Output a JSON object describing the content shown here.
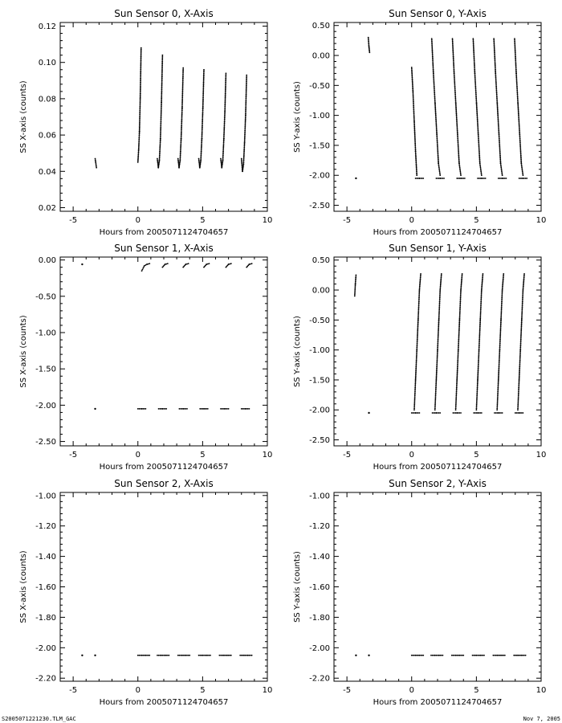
{
  "footer": {
    "left_label": "S2005071221230.TLM_GAC",
    "right_label": "Nov  7, 2005"
  },
  "chart_data": [
    {
      "type": "scatter",
      "title": "Sun Sensor 0, X-Axis",
      "xlabel": "Hours from 2005071124704657",
      "ylabel": "SS X-axis (counts)",
      "xlim": [
        -6,
        10
      ],
      "ylim": [
        0.018,
        0.122
      ],
      "xticks": [
        -5,
        0,
        5,
        10
      ],
      "yticks": [
        0.02,
        0.04,
        0.06,
        0.08,
        0.1,
        0.12
      ],
      "yformat": 2,
      "segments": [
        {
          "x": [
            -3.3,
            -3.2
          ],
          "y": [
            0.047,
            0.042
          ]
        },
        {
          "x": [
            0.0,
            0.06,
            0.12,
            0.18,
            0.25
          ],
          "y": [
            0.045,
            0.052,
            0.062,
            0.08,
            0.108
          ]
        },
        {
          "x": [
            1.5,
            1.58,
            1.66,
            1.74,
            1.82,
            1.9
          ],
          "y": [
            0.047,
            0.042,
            0.046,
            0.058,
            0.078,
            0.104
          ]
        },
        {
          "x": [
            3.1,
            3.18,
            3.26,
            3.34,
            3.42,
            3.5
          ],
          "y": [
            0.047,
            0.042,
            0.046,
            0.058,
            0.075,
            0.097
          ]
        },
        {
          "x": [
            4.7,
            4.78,
            4.86,
            4.94,
            5.02,
            5.1
          ],
          "y": [
            0.047,
            0.042,
            0.046,
            0.058,
            0.075,
            0.096
          ]
        },
        {
          "x": [
            6.4,
            6.48,
            6.56,
            6.64,
            6.72,
            6.8
          ],
          "y": [
            0.047,
            0.042,
            0.046,
            0.058,
            0.073,
            0.094
          ]
        },
        {
          "x": [
            8.0,
            8.08,
            8.16,
            8.24,
            8.32,
            8.4
          ],
          "y": [
            0.047,
            0.04,
            0.044,
            0.056,
            0.071,
            0.093
          ]
        }
      ]
    },
    {
      "type": "scatter",
      "title": "Sun Sensor 0, Y-Axis",
      "xlabel": "Hours from 2005071124704657",
      "ylabel": "SS Y-axis (counts)",
      "xlim": [
        -6,
        10
      ],
      "ylim": [
        -2.6,
        0.55
      ],
      "xticks": [
        -5,
        0,
        5,
        10
      ],
      "yticks": [
        -2.5,
        -2.0,
        -1.5,
        -1.0,
        -0.5,
        0.0,
        0.5
      ],
      "yformat": 2,
      "segments": [
        {
          "x": [
            -4.3
          ],
          "y": [
            -2.05
          ]
        },
        {
          "x": [
            -3.35,
            -3.3,
            -3.25
          ],
          "y": [
            0.3,
            0.15,
            0.05
          ]
        },
        {
          "x": [
            0.0,
            0.1,
            0.2,
            0.3,
            0.4
          ],
          "y": [
            -0.2,
            -0.6,
            -1.1,
            -1.6,
            -2.0
          ]
        },
        {
          "x": [
            1.55,
            1.68,
            1.81,
            1.94,
            2.07,
            2.2
          ],
          "y": [
            0.28,
            -0.3,
            -0.8,
            -1.3,
            -1.8,
            -2.0
          ]
        },
        {
          "x": [
            3.15,
            3.28,
            3.41,
            3.54,
            3.67,
            3.8
          ],
          "y": [
            0.28,
            -0.3,
            -0.8,
            -1.3,
            -1.8,
            -2.0
          ]
        },
        {
          "x": [
            4.75,
            4.88,
            5.01,
            5.14,
            5.27,
            5.4
          ],
          "y": [
            0.28,
            -0.3,
            -0.8,
            -1.3,
            -1.8,
            -2.0
          ]
        },
        {
          "x": [
            6.35,
            6.48,
            6.61,
            6.74,
            6.87,
            7.0
          ],
          "y": [
            0.28,
            -0.3,
            -0.8,
            -1.3,
            -1.8,
            -2.0
          ]
        },
        {
          "x": [
            7.95,
            8.08,
            8.21,
            8.34,
            8.47,
            8.6
          ],
          "y": [
            0.28,
            -0.3,
            -0.8,
            -1.3,
            -1.8,
            -2.0
          ]
        },
        {
          "x": [
            0.3,
            0.6,
            0.9
          ],
          "y": [
            -2.05,
            -2.05,
            -2.05
          ]
        },
        {
          "x": [
            1.9,
            2.2,
            2.5
          ],
          "y": [
            -2.05,
            -2.05,
            -2.05
          ]
        },
        {
          "x": [
            3.5,
            3.8,
            4.1
          ],
          "y": [
            -2.05,
            -2.05,
            -2.05
          ]
        },
        {
          "x": [
            5.1,
            5.4,
            5.7
          ],
          "y": [
            -2.05,
            -2.05,
            -2.05
          ]
        },
        {
          "x": [
            6.7,
            7.0,
            7.3
          ],
          "y": [
            -2.05,
            -2.05,
            -2.05
          ]
        },
        {
          "x": [
            8.3,
            8.6,
            8.9
          ],
          "y": [
            -2.05,
            -2.05,
            -2.05
          ]
        }
      ]
    },
    {
      "type": "scatter",
      "title": "Sun Sensor 1, X-Axis",
      "xlabel": "Hours from 2005071124704657",
      "ylabel": "SS X-axis (counts)",
      "xlim": [
        -6,
        10
      ],
      "ylim": [
        -2.56,
        0.04
      ],
      "xticks": [
        -5,
        0,
        5,
        10
      ],
      "yticks": [
        -2.5,
        -2.0,
        -1.5,
        -1.0,
        -0.5,
        0.0
      ],
      "yformat": 2,
      "segments": [
        {
          "x": [
            -4.3
          ],
          "y": [
            -0.06
          ]
        },
        {
          "x": [
            -3.3
          ],
          "y": [
            -2.05
          ]
        },
        {
          "x": [
            0.3,
            0.5,
            0.7,
            0.9
          ],
          "y": [
            -0.15,
            -0.08,
            -0.06,
            -0.05
          ]
        },
        {
          "x": [
            1.9,
            2.1,
            2.3
          ],
          "y": [
            -0.1,
            -0.06,
            -0.05
          ]
        },
        {
          "x": [
            3.5,
            3.7,
            3.9
          ],
          "y": [
            -0.1,
            -0.06,
            -0.05
          ]
        },
        {
          "x": [
            5.1,
            5.3,
            5.5
          ],
          "y": [
            -0.1,
            -0.06,
            -0.05
          ]
        },
        {
          "x": [
            6.8,
            7.0,
            7.2
          ],
          "y": [
            -0.1,
            -0.06,
            -0.05
          ]
        },
        {
          "x": [
            8.4,
            8.6,
            8.8
          ],
          "y": [
            -0.1,
            -0.06,
            -0.05
          ]
        },
        {
          "x": [
            0.0,
            0.3,
            0.6
          ],
          "y": [
            -2.05,
            -2.05,
            -2.05
          ]
        },
        {
          "x": [
            1.6,
            1.9,
            2.2
          ],
          "y": [
            -2.05,
            -2.05,
            -2.05
          ]
        },
        {
          "x": [
            3.2,
            3.5,
            3.8
          ],
          "y": [
            -2.05,
            -2.05,
            -2.05
          ]
        },
        {
          "x": [
            4.8,
            5.1,
            5.4
          ],
          "y": [
            -2.05,
            -2.05,
            -2.05
          ]
        },
        {
          "x": [
            6.4,
            6.7,
            7.0
          ],
          "y": [
            -2.05,
            -2.05,
            -2.05
          ]
        },
        {
          "x": [
            8.0,
            8.3,
            8.6
          ],
          "y": [
            -2.05,
            -2.05,
            -2.05
          ]
        }
      ]
    },
    {
      "type": "scatter",
      "title": "Sun Sensor 1, Y-Axis",
      "xlabel": "Hours from 2005071124704657",
      "ylabel": "SS Y-axis (counts)",
      "xlim": [
        -6,
        10
      ],
      "ylim": [
        -2.6,
        0.55
      ],
      "xticks": [
        -5,
        0,
        5,
        10
      ],
      "yticks": [
        -2.5,
        -2.0,
        -1.5,
        -1.0,
        -0.5,
        0.0,
        0.5
      ],
      "yformat": 2,
      "segments": [
        {
          "x": [
            -4.4,
            -4.35,
            -4.3
          ],
          "y": [
            -0.1,
            0.1,
            0.25
          ]
        },
        {
          "x": [
            -3.3
          ],
          "y": [
            -2.05
          ]
        },
        {
          "x": [
            0.2,
            0.3,
            0.4,
            0.5,
            0.6,
            0.7
          ],
          "y": [
            -2.0,
            -1.5,
            -1.0,
            -0.5,
            0.0,
            0.27
          ]
        },
        {
          "x": [
            1.8,
            1.9,
            2.0,
            2.1,
            2.2,
            2.3
          ],
          "y": [
            -2.0,
            -1.5,
            -1.0,
            -0.5,
            0.0,
            0.27
          ]
        },
        {
          "x": [
            3.4,
            3.5,
            3.6,
            3.7,
            3.8,
            3.9
          ],
          "y": [
            -2.0,
            -1.5,
            -1.0,
            -0.5,
            0.0,
            0.27
          ]
        },
        {
          "x": [
            5.0,
            5.1,
            5.2,
            5.3,
            5.4,
            5.5
          ],
          "y": [
            -2.0,
            -1.5,
            -1.0,
            -0.5,
            0.0,
            0.27
          ]
        },
        {
          "x": [
            6.6,
            6.7,
            6.8,
            6.9,
            7.0,
            7.1
          ],
          "y": [
            -2.0,
            -1.5,
            -1.0,
            -0.5,
            0.0,
            0.27
          ]
        },
        {
          "x": [
            8.2,
            8.3,
            8.4,
            8.5,
            8.6,
            8.7
          ],
          "y": [
            -2.0,
            -1.5,
            -1.0,
            -0.5,
            0.0,
            0.27
          ]
        },
        {
          "x": [
            0.0,
            0.3,
            0.6
          ],
          "y": [
            -2.05,
            -2.05,
            -2.05
          ]
        },
        {
          "x": [
            1.6,
            1.9,
            2.2
          ],
          "y": [
            -2.05,
            -2.05,
            -2.05
          ]
        },
        {
          "x": [
            3.2,
            3.5,
            3.8
          ],
          "y": [
            -2.05,
            -2.05,
            -2.05
          ]
        },
        {
          "x": [
            4.8,
            5.1,
            5.4
          ],
          "y": [
            -2.05,
            -2.05,
            -2.05
          ]
        },
        {
          "x": [
            6.4,
            6.7,
            7.0
          ],
          "y": [
            -2.05,
            -2.05,
            -2.05
          ]
        },
        {
          "x": [
            8.0,
            8.3,
            8.6
          ],
          "y": [
            -2.05,
            -2.05,
            -2.05
          ]
        }
      ]
    },
    {
      "type": "scatter",
      "title": "Sun Sensor 2, X-Axis",
      "xlabel": "Hours from 2005071124704657",
      "ylabel": "SS X-axis (counts)",
      "xlim": [
        -6,
        10
      ],
      "ylim": [
        -2.22,
        -0.98
      ],
      "xticks": [
        -5,
        0,
        5,
        10
      ],
      "yticks": [
        -2.2,
        -2.0,
        -1.8,
        -1.6,
        -1.4,
        -1.2,
        -1.0
      ],
      "yformat": 2,
      "segments": [
        {
          "x": [
            -4.3
          ],
          "y": [
            -2.05
          ]
        },
        {
          "x": [
            -3.3
          ],
          "y": [
            -2.05
          ]
        },
        {
          "x": [
            0.0,
            0.3,
            0.6,
            0.9
          ],
          "y": [
            -2.05,
            -2.05,
            -2.05,
            -2.05
          ]
        },
        {
          "x": [
            1.5,
            1.8,
            2.1,
            2.4
          ],
          "y": [
            -2.05,
            -2.05,
            -2.05,
            -2.05
          ]
        },
        {
          "x": [
            3.1,
            3.4,
            3.7,
            4.0
          ],
          "y": [
            -2.05,
            -2.05,
            -2.05,
            -2.05
          ]
        },
        {
          "x": [
            4.7,
            5.0,
            5.3,
            5.6
          ],
          "y": [
            -2.05,
            -2.05,
            -2.05,
            -2.05
          ]
        },
        {
          "x": [
            6.3,
            6.6,
            6.9,
            7.2
          ],
          "y": [
            -2.05,
            -2.05,
            -2.05,
            -2.05
          ]
        },
        {
          "x": [
            7.9,
            8.2,
            8.5,
            8.8
          ],
          "y": [
            -2.05,
            -2.05,
            -2.05,
            -2.05
          ]
        }
      ]
    },
    {
      "type": "scatter",
      "title": "Sun Sensor 2, Y-Axis",
      "xlabel": "Hours from 2005071124704657",
      "ylabel": "SS Y-axis (counts)",
      "xlim": [
        -6,
        10
      ],
      "ylim": [
        -2.22,
        -0.98
      ],
      "xticks": [
        -5,
        0,
        5,
        10
      ],
      "yticks": [
        -2.2,
        -2.0,
        -1.8,
        -1.6,
        -1.4,
        -1.2,
        -1.0
      ],
      "yformat": 2,
      "segments": [
        {
          "x": [
            -4.3
          ],
          "y": [
            -2.05
          ]
        },
        {
          "x": [
            -3.3
          ],
          "y": [
            -2.05
          ]
        },
        {
          "x": [
            0.0,
            0.3,
            0.6,
            0.9
          ],
          "y": [
            -2.05,
            -2.05,
            -2.05,
            -2.05
          ]
        },
        {
          "x": [
            1.5,
            1.8,
            2.1,
            2.4
          ],
          "y": [
            -2.05,
            -2.05,
            -2.05,
            -2.05
          ]
        },
        {
          "x": [
            3.1,
            3.4,
            3.7,
            4.0
          ],
          "y": [
            -2.05,
            -2.05,
            -2.05,
            -2.05
          ]
        },
        {
          "x": [
            4.7,
            5.0,
            5.3,
            5.6
          ],
          "y": [
            -2.05,
            -2.05,
            -2.05,
            -2.05
          ]
        },
        {
          "x": [
            6.3,
            6.6,
            6.9,
            7.2
          ],
          "y": [
            -2.05,
            -2.05,
            -2.05,
            -2.05
          ]
        },
        {
          "x": [
            7.9,
            8.2,
            8.5,
            8.8
          ],
          "y": [
            -2.05,
            -2.05,
            -2.05,
            -2.05
          ]
        }
      ]
    }
  ]
}
